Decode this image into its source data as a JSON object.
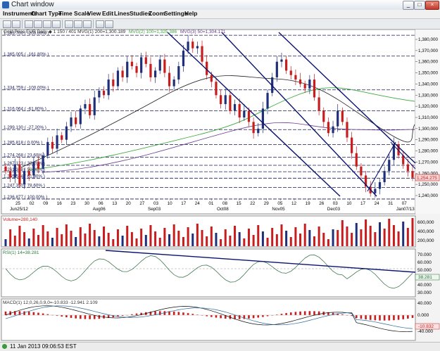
{
  "window": {
    "title": "Chart window",
    "min_glyph": "_",
    "max_glyph": "□",
    "close_glyph": "×"
  },
  "menu": [
    "Instruments",
    "Chart Type",
    "Time Scale",
    "View",
    "Edit",
    "Lines",
    "Studies",
    "Zoom",
    "Settings",
    "Help"
  ],
  "legend": {
    "prefix": "Gold Price EUR  Daily  ◆ 1 150 / 401  MVG(1) 200=1,300.189",
    "mvg2": "MVG(2) 100=1,325.386",
    "mvg3": "MVG(3) 50=1,304.171"
  },
  "fib_levels": [
    {
      "label": "1,383.700 ( -200.00% )",
      "price": 1383.7
    },
    {
      "label": "1,365.005 ( -161.80% )",
      "price": 1365.0
    },
    {
      "label": "1,334.759 ( -100.00% )",
      "price": 1334.76
    },
    {
      "label": "1,316.064 ( -61.80% )",
      "price": 1316.06
    },
    {
      "label": "1,299.130 ( -27.20% )",
      "price": 1299.13
    },
    {
      "label": "1,285.818 ( 0.00% )",
      "price": 1285.82
    },
    {
      "label": "1,274.268 ( 23.60% )",
      "price": 1274.27
    },
    {
      "label": "1,267.123 ( 38.20% )",
      "price": 1267.12
    },
    {
      "label": "1,261.348 ( 50.00% )",
      "price": 1261.35
    },
    {
      "label": "1,255.574 ( 61.80% )",
      "price": 1255.57
    },
    {
      "label": "1,247.350 ( 78.60% )",
      "price": 1247.35
    },
    {
      "label": "1,236.877 ( 100.00% )",
      "price": 1236.88
    }
  ],
  "price_axis": [
    "1,380,000",
    "1,370,000",
    "1,360,000",
    "1,350,000",
    "1,340,000",
    "1,330,000",
    "1,320,000",
    "1,310,000",
    "1,300,000",
    "1,290,000",
    "1,280,000",
    "1,270,000",
    "1,260,000",
    "1,250,000",
    "1,240,000"
  ],
  "price_ticks": [
    1380,
    1370,
    1360,
    1350,
    1340,
    1330,
    1320,
    1310,
    1300,
    1290,
    1280,
    1270,
    1260,
    1250,
    1240
  ],
  "current_price": {
    "label": "1,254.275",
    "price": 1254.275
  },
  "dates_row1": [
    "25",
    "02",
    "09",
    "16",
    "23",
    "30",
    "06",
    "13",
    "20",
    "27",
    "03",
    "10",
    "17",
    "24",
    "01",
    "08",
    "15",
    "22",
    "29",
    "05",
    "12",
    "19",
    "26",
    "03",
    "10",
    "17",
    "24",
    "31",
    "07"
  ],
  "months_row2": [
    {
      "label": "Jun25/12",
      "idx": 0
    },
    {
      "label": "Aug06",
      "idx": 6
    },
    {
      "label": "Sep03",
      "idx": 10
    },
    {
      "label": "Oct08",
      "idx": 15
    },
    {
      "label": "Nov05",
      "idx": 19
    },
    {
      "label": "Dec03",
      "idx": 23
    },
    {
      "label": "Jan07/13",
      "idx": 28
    }
  ],
  "volume": {
    "legend": "Volume=280,140",
    "axis": [
      "600,000",
      "400,000",
      "200,000"
    ]
  },
  "rsi": {
    "legend": "RSI(1) 14=38.281",
    "axis": [
      "70.000",
      "60.000",
      "50.000",
      "40.000",
      "30.000"
    ],
    "current": "38.281",
    "current_value": 38.281
  },
  "macd": {
    "legend": "MACD(1) 12,0,26,0,9,0=-10.833  -12.941 2.109",
    "axis": [
      "40.000",
      "0.000",
      "-40.000"
    ],
    "current": "-10.832",
    "current_value": -10.832
  },
  "status": {
    "datetime": "11 Jan 2013 09:06:53 EST"
  },
  "colors": {
    "bull": "#1f2f7a",
    "bear": "#c81d1d",
    "channel": "#0b1270",
    "ma_black": "#222222",
    "ma_green": "#3daa3d",
    "ma_purple": "#6a3c94"
  }
}
